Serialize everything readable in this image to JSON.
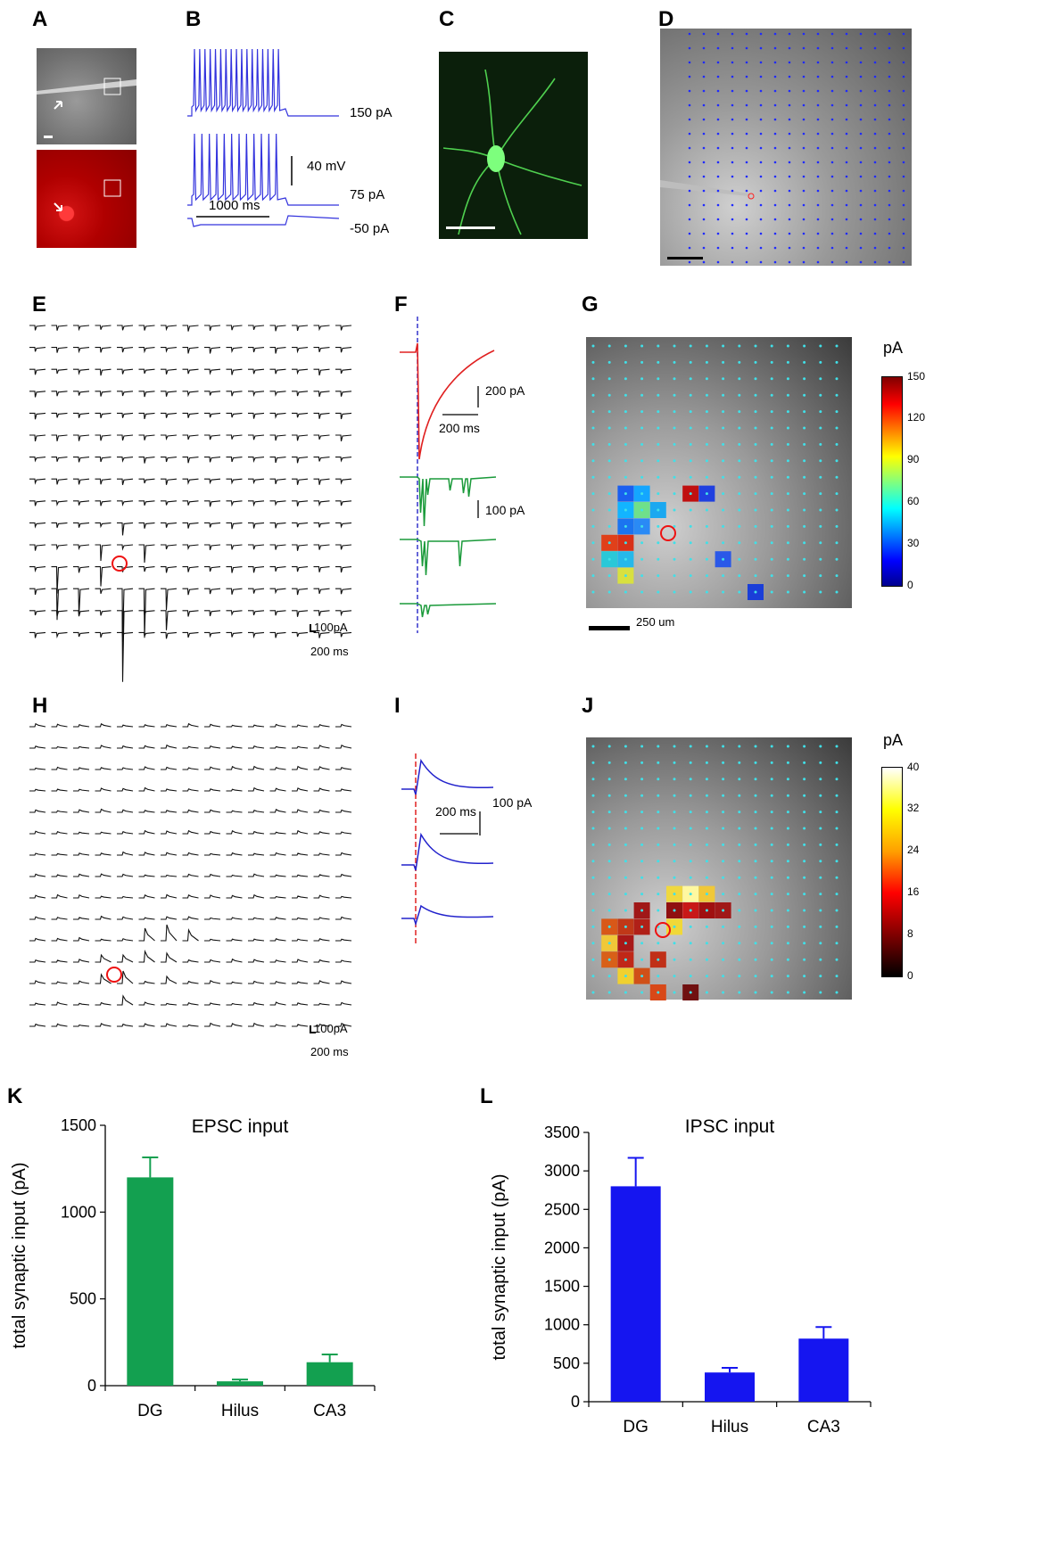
{
  "panels": {
    "A": "A",
    "B": "B",
    "C": "C",
    "D": "D",
    "E": "E",
    "F": "F",
    "G": "G",
    "H": "H",
    "I": "I",
    "J": "J",
    "K": "K",
    "L": "L"
  },
  "panel_b": {
    "current_steps": [
      "150 pA",
      "75 pA",
      "-50 pA"
    ],
    "scale_voltage": "40 mV",
    "scale_time": "1000 ms",
    "trace_color": "#3333dd"
  },
  "panel_e": {
    "scale_current": "100pA",
    "scale_time": "200 ms"
  },
  "panel_f": {
    "scale_red_current": "200 pA",
    "scale_red_time": "200 ms",
    "scale_green_current": "100 pA",
    "red_color": "#e02020",
    "green_color": "#1a9a3a",
    "marker_color": "#3333cc"
  },
  "panel_g": {
    "colorbar_unit": "pA",
    "colorbar_ticks": [
      "150",
      "120",
      "90",
      "60",
      "30",
      "0"
    ],
    "scalebar_label": "250 um"
  },
  "panel_h": {
    "scale_current": "100pA",
    "scale_time": "200 ms"
  },
  "panel_i": {
    "scale_time": "200 ms",
    "scale_current": "100 pA",
    "trace_color": "#2222cc",
    "marker_color": "#e02020"
  },
  "panel_j": {
    "colorbar_unit": "pA",
    "colorbar_ticks": [
      "40",
      "32",
      "24",
      "16",
      "8",
      "0"
    ]
  },
  "chart_data": [
    {
      "type": "bar",
      "panel": "K",
      "title": "EPSC input",
      "ylabel": "total synaptic input (pA)",
      "categories": [
        "DG",
        "Hilus",
        "CA3"
      ],
      "values": [
        1200,
        25,
        135
      ],
      "errors": [
        115,
        10,
        45
      ],
      "ylim": [
        0,
        1500
      ],
      "yticks": [
        0,
        500,
        1000,
        1500
      ],
      "color": "#13a050"
    },
    {
      "type": "bar",
      "panel": "L",
      "title": "IPSC input",
      "ylabel": "total synaptic input (pA)",
      "categories": [
        "DG",
        "Hilus",
        "CA3"
      ],
      "values": [
        2800,
        380,
        820
      ],
      "errors": [
        370,
        60,
        150
      ],
      "ylim": [
        0,
        3500
      ],
      "yticks": [
        0,
        500,
        1000,
        1500,
        2000,
        2500,
        3000,
        3500
      ],
      "color": "#1515f0"
    }
  ]
}
